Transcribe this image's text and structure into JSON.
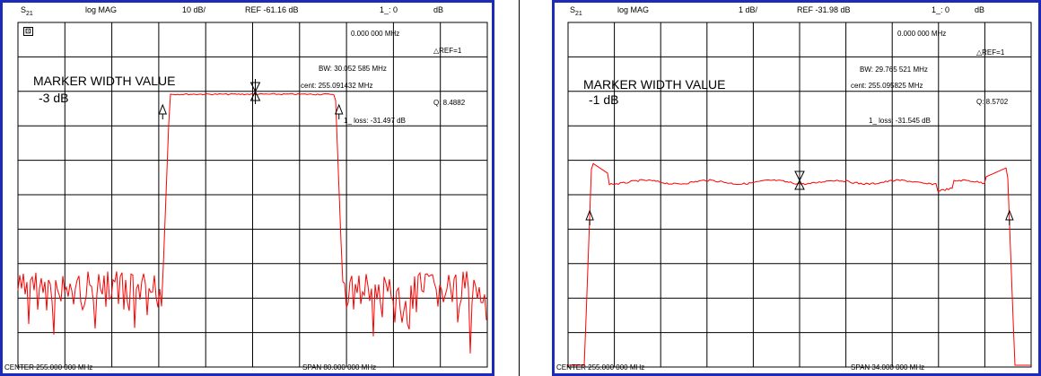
{
  "colors": {
    "trace": "#ff0000",
    "border": "#1c2bb8",
    "grid": "#000000"
  },
  "screens": [
    {
      "id": "left",
      "header": {
        "param": "S",
        "param_sub": "21",
        "format": "log MAG",
        "scale": "10 dB/",
        "ref": "REF -61.16 dB",
        "status": "1_: 0",
        "status_unit": "dB"
      },
      "footer": {
        "center": "CENTER  255.000 000 MHz",
        "span": "SPAN  80.000 000 MHz"
      },
      "marker_title": "MARKER WIDTH VALUE",
      "marker_level": "-3 dB",
      "icon": "cal-icon",
      "readout": {
        "freq": "0.000 000 MHz",
        "ref": "△REF=1",
        "bw": "BW:  30.052 585 MHz",
        "cent": "cent:  255.091432 MHz",
        "q": "Q:  8.4882",
        "loss": "1_ loss:  -31.497 dB"
      },
      "chart_data": {
        "type": "line",
        "x_unit": "MHz",
        "y_unit": "dB",
        "center_mhz": 255.0,
        "span_mhz": 80.0,
        "scale_db_per_div": 10,
        "ref_db": -61.16,
        "grid_divisions": [
          10,
          10
        ],
        "bandwidth_mhz": 30.052585,
        "q": 8.4882,
        "loss_db": -31.497,
        "passband_level_db": -31.5,
        "noise_floor_db": -110
      }
    },
    {
      "id": "right",
      "header": {
        "param": "S",
        "param_sub": "21",
        "format": "log MAG",
        "scale": "1 dB/",
        "ref": "REF -31.98 dB",
        "status": "1_: 0",
        "status_unit": "dB"
      },
      "footer": {
        "center": "CENTER  255.000 000 MHz",
        "span": "SPAN  34.000 000 MHz"
      },
      "marker_title": "MARKER WIDTH VALUE",
      "marker_level": "-1 dB",
      "readout": {
        "freq": "0.000 000 MHz",
        "ref": "△REF=1",
        "bw": "BW:  29.765 521 MHz",
        "cent": "cent:  255.095825 MHz",
        "q": "Q:  8.5702",
        "loss": "1_ loss:  -31.545 dB"
      },
      "chart_data": {
        "type": "line",
        "x_unit": "MHz",
        "y_unit": "dB",
        "center_mhz": 255.0,
        "span_mhz": 34.0,
        "scale_db_per_div": 1,
        "ref_db": -31.98,
        "grid_divisions": [
          10,
          10
        ],
        "bandwidth_mhz": 29.765521,
        "q": 8.5702,
        "loss_db": -31.545,
        "passband_level_db": -31.55
      }
    }
  ]
}
